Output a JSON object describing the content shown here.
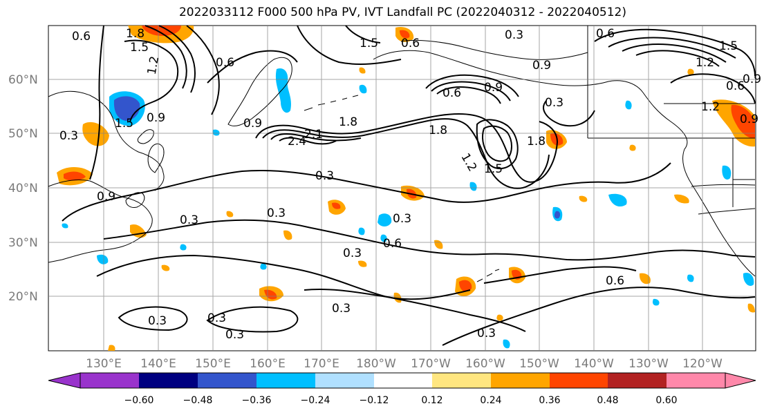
{
  "title": "2022033112 F000 500 hPa PV, IVT Landfall PC (2022040312 - 2022040512)",
  "map": {
    "lat_ticks": [
      "60°N",
      "50°N",
      "40°N",
      "30°N",
      "20°N"
    ],
    "lon_ticks": [
      "130°E",
      "140°E",
      "150°E",
      "160°E",
      "170°E",
      "180°W",
      "170°W",
      "160°W",
      "150°W",
      "140°W",
      "130°W",
      "120°W"
    ],
    "contour_labels": [
      "0.6",
      "1.8",
      "1.5",
      "1.2",
      "0.9",
      "0.3",
      "0.6",
      "0.9",
      "1.5",
      "0.3",
      "0.9",
      "2.4",
      "2.1",
      "1.8",
      "1.5",
      "1.8",
      "1.2",
      "0.9",
      "0.6",
      "0.3",
      "0.3",
      "0.3",
      "0.3",
      "0.6",
      "0.3",
      "0.3",
      "0.3",
      "0.3",
      "0.6",
      "1.2",
      "1.5",
      "0.9",
      "0.3",
      "1.8",
      "0.9",
      "0.6",
      "0.3",
      "0.6",
      "0.3",
      "0.9",
      "1.2",
      "1.5",
      "0.6"
    ]
  },
  "colorbar": {
    "ticks": [
      "−0.60",
      "−0.48",
      "−0.36",
      "−0.24",
      "−0.12",
      "0.12",
      "0.24",
      "0.36",
      "0.48",
      "0.60"
    ],
    "colors": [
      "#9933cc",
      "#000080",
      "#3355cc",
      "#00bfff",
      "#b0e0ff",
      "#ffffff",
      "#ffe680",
      "#ffa500",
      "#ff4500",
      "#b22222",
      "#ff88aa"
    ]
  },
  "colors": {
    "contour": "#000000",
    "coast": "#000000",
    "grid": "#808080"
  }
}
